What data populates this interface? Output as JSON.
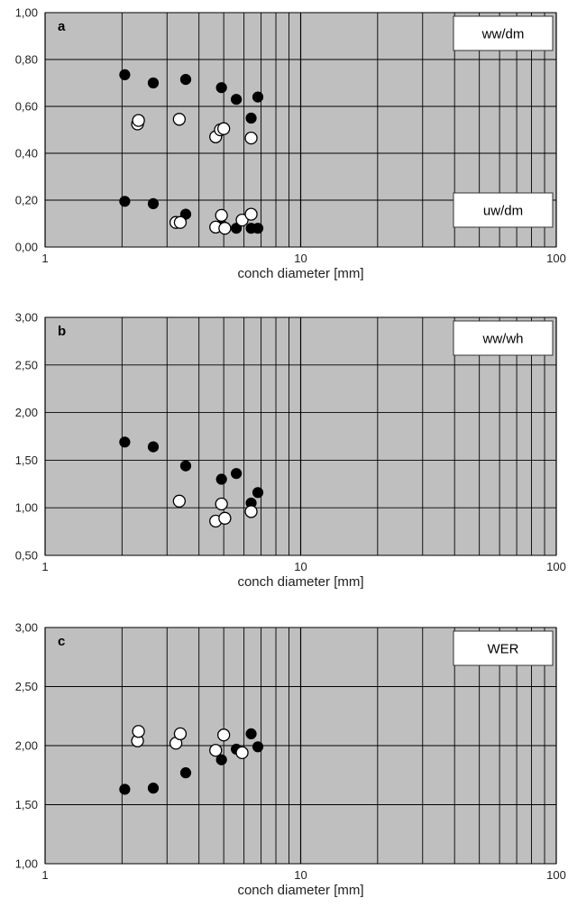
{
  "chart_data": [
    {
      "type": "scatter",
      "panel_label": "a",
      "xlabel": "conch diameter [mm]",
      "xscale": "log",
      "xlim": [
        1,
        100
      ],
      "x_ticks": [
        "1",
        "10",
        "100"
      ],
      "ylim": [
        0,
        1
      ],
      "y_ticks": [
        "0,00",
        "0,20",
        "0,40",
        "0,60",
        "0,80",
        "1,00"
      ],
      "grid": true,
      "legend_boxes": [
        "ww/dm",
        "uw/dm"
      ],
      "colors": {
        "background": "#bfbfbf",
        "filled": "#000000",
        "open": "#ffffff"
      },
      "series": [
        {
          "marker": "filled",
          "points": [
            [
              2.05,
              0.735
            ],
            [
              2.65,
              0.7
            ],
            [
              3.55,
              0.715
            ],
            [
              4.9,
              0.68
            ],
            [
              5.6,
              0.63
            ],
            [
              6.4,
              0.55
            ],
            [
              6.8,
              0.64
            ],
            [
              2.05,
              0.195
            ],
            [
              2.65,
              0.185
            ],
            [
              3.55,
              0.14
            ],
            [
              4.9,
              0.095
            ],
            [
              5.6,
              0.08
            ],
            [
              6.4,
              0.08
            ],
            [
              6.8,
              0.08
            ]
          ]
        },
        {
          "marker": "open",
          "points": [
            [
              2.3,
              0.525
            ],
            [
              2.32,
              0.54
            ],
            [
              3.35,
              0.545
            ],
            [
              4.65,
              0.47
            ],
            [
              4.85,
              0.5
            ],
            [
              5.0,
              0.505
            ],
            [
              6.4,
              0.465
            ],
            [
              3.25,
              0.105
            ],
            [
              3.38,
              0.105
            ],
            [
              4.65,
              0.085
            ],
            [
              4.9,
              0.135
            ],
            [
              5.05,
              0.08
            ],
            [
              5.9,
              0.115
            ],
            [
              6.4,
              0.14
            ]
          ]
        }
      ]
    },
    {
      "type": "scatter",
      "panel_label": "b",
      "xlabel": "conch diameter [mm]",
      "xscale": "log",
      "xlim": [
        1,
        100
      ],
      "x_ticks": [
        "1",
        "10",
        "100"
      ],
      "ylim": [
        0.5,
        3
      ],
      "y_ticks": [
        "0,50",
        "1,00",
        "1,50",
        "2,00",
        "2,50",
        "3,00"
      ],
      "grid": true,
      "legend_boxes": [
        "ww/wh"
      ],
      "colors": {
        "background": "#bfbfbf",
        "filled": "#000000",
        "open": "#ffffff"
      },
      "series": [
        {
          "marker": "filled",
          "points": [
            [
              2.05,
              1.69
            ],
            [
              2.65,
              1.64
            ],
            [
              3.55,
              1.44
            ],
            [
              4.9,
              1.3
            ],
            [
              5.6,
              1.36
            ],
            [
              6.4,
              1.05
            ],
            [
              6.8,
              1.16
            ]
          ]
        },
        {
          "marker": "open",
          "points": [
            [
              3.35,
              1.07
            ],
            [
              4.65,
              0.86
            ],
            [
              4.9,
              1.04
            ],
            [
              5.05,
              0.89
            ],
            [
              6.4,
              0.96
            ]
          ]
        }
      ]
    },
    {
      "type": "scatter",
      "panel_label": "c",
      "xlabel": "conch diameter [mm]",
      "xscale": "log",
      "xlim": [
        1,
        100
      ],
      "x_ticks": [
        "1",
        "10",
        "100"
      ],
      "ylim": [
        1,
        3
      ],
      "y_ticks": [
        "1,00",
        "1,50",
        "2,00",
        "2,50",
        "3,00"
      ],
      "grid": true,
      "legend_boxes": [
        "WER"
      ],
      "colors": {
        "background": "#bfbfbf",
        "filled": "#000000",
        "open": "#ffffff"
      },
      "series": [
        {
          "marker": "filled",
          "points": [
            [
              2.05,
              1.63
            ],
            [
              2.65,
              1.64
            ],
            [
              3.55,
              1.77
            ],
            [
              4.9,
              1.88
            ],
            [
              5.6,
              1.97
            ],
            [
              6.4,
              2.1
            ],
            [
              6.8,
              1.99
            ]
          ]
        },
        {
          "marker": "open",
          "points": [
            [
              2.3,
              2.04
            ],
            [
              2.32,
              2.12
            ],
            [
              3.25,
              2.02
            ],
            [
              3.38,
              2.1
            ],
            [
              4.65,
              1.96
            ],
            [
              5.0,
              2.09
            ],
            [
              5.9,
              1.94
            ]
          ]
        }
      ]
    }
  ]
}
